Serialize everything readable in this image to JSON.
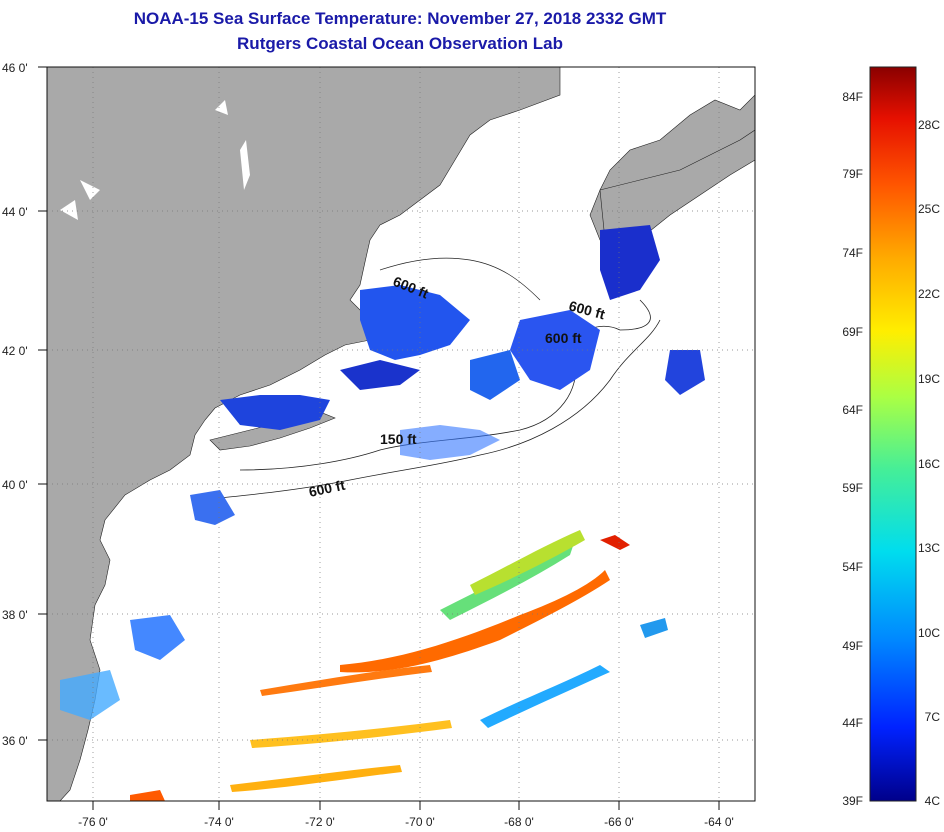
{
  "header": {
    "title": "NOAA-15 Sea Surface Temperature:  November 27, 2018 2332 GMT",
    "subtitle": "Rutgers Coastal Ocean Observation Lab"
  },
  "axes": {
    "longitude_labels": [
      "-76 0'",
      "-74 0'",
      "-72 0'",
      "-70 0'",
      "-68 0'",
      "-66 0'",
      "-64 0'"
    ],
    "latitude_labels": [
      "46 0'",
      "44 0'",
      "42 0'",
      "40 0'",
      "38 0'",
      "36 0'"
    ],
    "lon_range": [
      -77,
      -63
    ],
    "lat_range": [
      35,
      46
    ],
    "grid": "dotted"
  },
  "contours": {
    "labels": [
      "600 ft",
      "600 ft",
      "600 ft",
      "150 ft",
      "600 ft"
    ]
  },
  "colorbar": {
    "fahrenheit": [
      "84F",
      "79F",
      "74F",
      "69F",
      "64F",
      "59F",
      "54F",
      "49F",
      "44F",
      "39F"
    ],
    "celsius": [
      "28C",
      "25C",
      "22C",
      "19C",
      "16C",
      "13C",
      "10C",
      "7C",
      "4C"
    ],
    "colors": [
      "#00008a",
      "#0022ff",
      "#0088ff",
      "#00ddee",
      "#44ee99",
      "#aaff44",
      "#ffee00",
      "#ffaa00",
      "#ff5500",
      "#e61000",
      "#8a0000"
    ]
  },
  "colors": {
    "land": "#a9a9a9",
    "ocean": "#ffffff",
    "title": "#1a1aa8"
  }
}
